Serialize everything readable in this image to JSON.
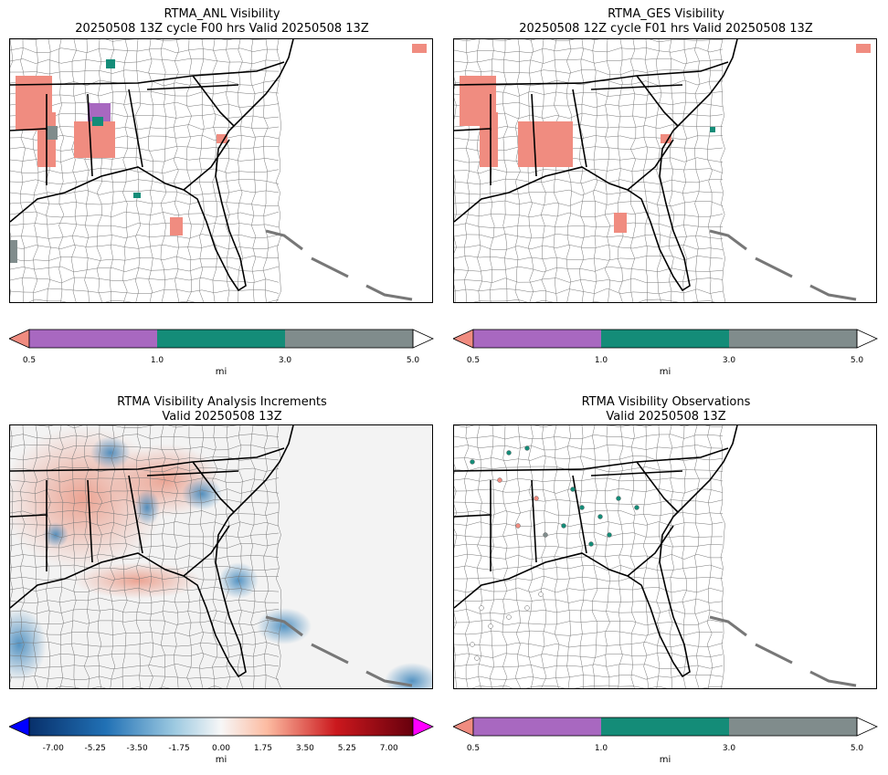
{
  "panels": [
    {
      "title_line1": "RTMA_ANL Visibility",
      "title_line2": "20250508 13Z cycle F00 hrs Valid 20250508 13Z"
    },
    {
      "title_line1": "RTMA_GES Visibility",
      "title_line2": "20250508 12Z cycle F01 hrs Valid 20250508 13Z"
    },
    {
      "title_line1": "RTMA Visibility Analysis Increments",
      "title_line2": "Valid 20250508 13Z"
    },
    {
      "title_line1": "RTMA Visibility Observations",
      "title_line2": "Valid 20250508 13Z"
    }
  ],
  "visibility_colorbar": {
    "ticks": [
      "0.5",
      "1.0",
      "3.0",
      "5.0"
    ],
    "unit": "mi",
    "colors": {
      "under": "#f08c80",
      "b1": "#a868c0",
      "b2": "#148c78",
      "b3": "#808c8c",
      "over": "#ffffff"
    }
  },
  "increment_colorbar": {
    "ticks": [
      "-7.00",
      "-5.25",
      "-3.50",
      "-1.75",
      "0.00",
      "1.75",
      "3.50",
      "5.25",
      "7.00"
    ],
    "tick_values": [
      -7.0,
      -5.25,
      -3.5,
      -1.75,
      0.0,
      1.75,
      3.5,
      5.25,
      7.0
    ],
    "range": [
      -8.0,
      8.0
    ],
    "unit": "mi",
    "colors": {
      "under": "#0000ff",
      "over": "#ff00ff",
      "neg_dark": "#08306b",
      "pos_dark": "#67000d"
    }
  }
}
